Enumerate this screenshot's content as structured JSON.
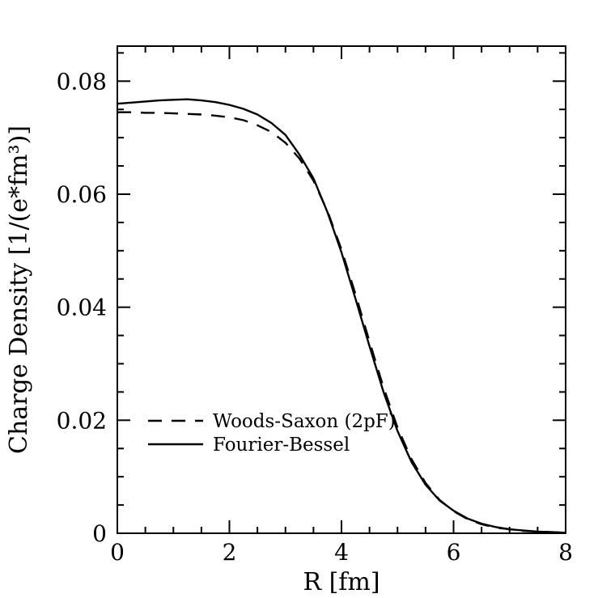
{
  "page": {
    "background": "#ffffff",
    "frame_color": "#000000"
  },
  "chart_data": {
    "type": "line",
    "title": "",
    "xlabel": "R [fm]",
    "ylabel": "Charge Density [1/(e*fm³)]",
    "xlim": [
      0,
      8
    ],
    "ylim": [
      0,
      0.0862
    ],
    "x_major_ticks": [
      0,
      2,
      4,
      6,
      8
    ],
    "x_tick_labels": [
      "0",
      "2",
      "4",
      "6",
      "8"
    ],
    "x_minor_step": 0.5,
    "y_major_ticks": [
      0,
      0.02,
      0.04,
      0.06,
      0.08
    ],
    "y_tick_labels": [
      "0",
      "0.02",
      "0.04",
      "0.06",
      "0.08"
    ],
    "y_minor_step": 0.005,
    "grid": false,
    "legend_position": "inside-lower-left",
    "x": [
      0,
      0.25,
      0.5,
      0.75,
      1,
      1.25,
      1.5,
      1.75,
      2,
      2.25,
      2.5,
      2.75,
      3,
      3.25,
      3.5,
      3.75,
      4,
      4.25,
      4.5,
      4.75,
      5,
      5.25,
      5.5,
      5.75,
      6,
      6.25,
      6.5,
      6.75,
      7,
      7.25,
      7.5,
      7.75,
      8
    ],
    "series": [
      {
        "name": "Woods-Saxon (2pF)",
        "style": "dashed",
        "color": "#000000",
        "values": [
          0.0745,
          0.0745,
          0.0744,
          0.0744,
          0.0743,
          0.0742,
          0.0741,
          0.0739,
          0.0736,
          0.0731,
          0.0722,
          0.071,
          0.0691,
          0.0663,
          0.0624,
          0.057,
          0.0502,
          0.0423,
          0.0339,
          0.0258,
          0.0187,
          0.0131,
          0.0089,
          0.0059,
          0.0039,
          0.0025,
          0.0016,
          0.001,
          0.0007,
          0.0004,
          0.0003,
          0.0002,
          0.0001
        ]
      },
      {
        "name": "Fourier-Bessel",
        "style": "solid",
        "color": "#000000",
        "values": [
          0.076,
          0.0762,
          0.0764,
          0.0766,
          0.0767,
          0.0768,
          0.0766,
          0.0763,
          0.0758,
          0.0751,
          0.0741,
          0.0726,
          0.0705,
          0.067,
          0.0628,
          0.0568,
          0.0497,
          0.0415,
          0.0331,
          0.025,
          0.0181,
          0.0126,
          0.0086,
          0.0058,
          0.004,
          0.0026,
          0.0017,
          0.0011,
          0.0007,
          0.0005,
          0.0003,
          0.0002,
          0.0001
        ]
      }
    ]
  }
}
